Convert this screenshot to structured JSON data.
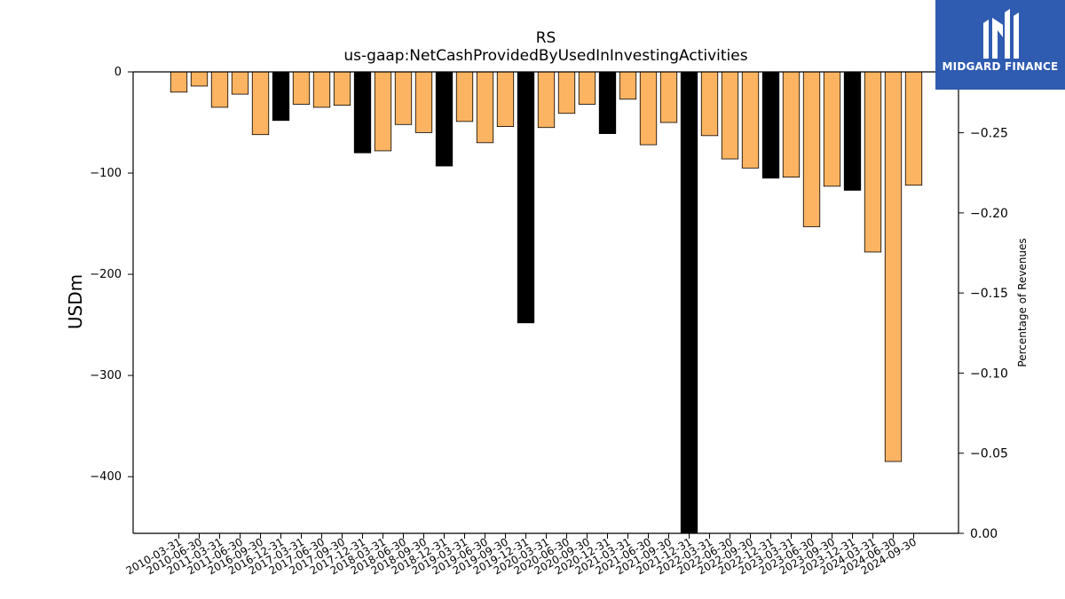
{
  "chart_data": {
    "type": "bar",
    "title": "RS",
    "subtitle": "us-gaap:NetCashProvidedByUsedInInvestingActivities",
    "ylabel": "USDm",
    "y2label": "Percentage of Revenues",
    "ylim": [
      -456,
      0
    ],
    "yticks": [
      0,
      -100,
      -200,
      -300,
      -400
    ],
    "y2lim": [
      0.0,
      -0.288
    ],
    "y2ticks": [
      -0.25,
      -0.2,
      -0.15,
      -0.1,
      -0.05,
      0.0
    ],
    "y2tick_labels": [
      "−0.25",
      "−0.20",
      "−0.15",
      "−0.10",
      "−0.05",
      "0.00"
    ],
    "categories": [
      "2010-03-31",
      "2010-06-30",
      "2011-03-31",
      "2011-06-30",
      "2016-09-30",
      "2016-12-31",
      "2017-03-31",
      "2017-06-30",
      "2017-09-30",
      "2017-12-31",
      "2018-03-31",
      "2018-06-30",
      "2018-09-30",
      "2018-12-31",
      "2019-03-31",
      "2019-06-30",
      "2019-09-30",
      "2019-12-31",
      "2020-03-31",
      "2020-06-30",
      "2020-09-30",
      "2020-12-31",
      "2021-03-31",
      "2021-06-30",
      "2021-09-30",
      "2021-12-31",
      "2022-03-31",
      "2022-06-30",
      "2022-09-30",
      "2022-12-31",
      "2023-03-31",
      "2023-06-30",
      "2023-09-30",
      "2023-12-31",
      "2024-03-31",
      "2024-06-30",
      "2024-09-30"
    ],
    "values": [
      -20,
      -14,
      -35,
      -22,
      -62,
      -48,
      -32,
      -35,
      -33,
      -80,
      -78,
      -52,
      -60,
      -93,
      -49,
      -70,
      -54,
      -248,
      -55,
      -41,
      -32,
      -61,
      -27,
      -72,
      -50,
      -460,
      -63,
      -86,
      -95,
      -105,
      -104,
      -153,
      -113,
      -117,
      -178,
      -385,
      -112
    ],
    "highlight": [
      false,
      false,
      false,
      false,
      false,
      true,
      false,
      false,
      false,
      true,
      false,
      false,
      false,
      true,
      false,
      false,
      false,
      true,
      false,
      false,
      false,
      true,
      false,
      false,
      false,
      true,
      false,
      false,
      false,
      true,
      false,
      false,
      false,
      true,
      false,
      false,
      false
    ],
    "colors": {
      "bar": "#FDB462",
      "highlight": "#000000",
      "edge": "#000000"
    },
    "grid": false
  },
  "logo": {
    "text": "MIDGARD FINANCE",
    "background": "#2f5bb0"
  }
}
